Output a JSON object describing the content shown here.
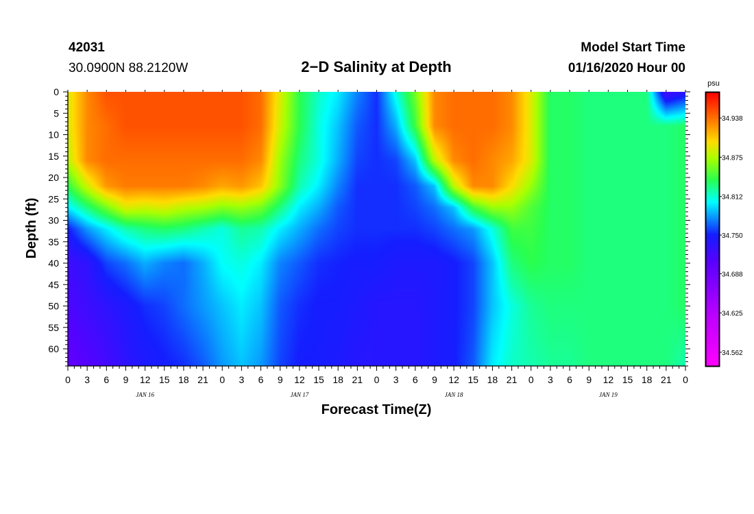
{
  "header": {
    "station_id": "42031",
    "location": "30.0900N 88.2120W",
    "title": "2−D Salinity at Depth",
    "model_label": "Model Start Time",
    "model_time": "01/16/2020 Hour 00"
  },
  "chart_data": {
    "type": "heatmap",
    "title": "2−D Salinity at Depth",
    "xlabel": "Forecast Time(Z)",
    "ylabel": "Depth (ft)",
    "x_range_hours": [
      0,
      96
    ],
    "y_range_ft": [
      0,
      64
    ],
    "y_inverted": true,
    "x_tick_labels": [
      "0",
      "3",
      "6",
      "9",
      "12",
      "15",
      "18",
      "21",
      "0",
      "3",
      "6",
      "9",
      "12",
      "15",
      "18",
      "21",
      "0",
      "3",
      "6",
      "9",
      "12",
      "15",
      "18",
      "21",
      "0",
      "3",
      "6",
      "9",
      "12",
      "15",
      "18",
      "21",
      "0"
    ],
    "y_tick_labels": [
      "0",
      "5",
      "10",
      "15",
      "20",
      "25",
      "30",
      "35",
      "40",
      "45",
      "50",
      "55",
      "60"
    ],
    "day_labels": [
      "JAN 16",
      "JAN 17",
      "JAN 18",
      "JAN 19"
    ],
    "colorbar": {
      "unit": "psu",
      "range": [
        34.54,
        34.98
      ],
      "tick_labels": [
        "34.938",
        "34.875",
        "34.812",
        "34.750",
        "34.688",
        "34.625",
        "34.562"
      ]
    },
    "depths_ft": [
      0,
      8,
      16,
      22,
      27,
      32,
      40,
      50,
      64
    ],
    "times_hours": [
      0,
      3,
      6,
      9,
      12,
      15,
      18,
      21,
      24,
      27,
      30,
      33,
      36,
      39,
      42,
      45,
      48,
      51,
      54,
      57,
      60,
      63,
      66,
      69,
      72,
      75,
      78,
      81,
      84,
      87,
      90,
      93,
      96
    ],
    "values_psu": [
      [
        34.89,
        34.93,
        34.95,
        34.95,
        34.95,
        34.95,
        34.95,
        34.95,
        34.95,
        34.95,
        34.94,
        34.89,
        34.84,
        34.815,
        34.8,
        34.775,
        34.755,
        34.81,
        34.86,
        34.93,
        34.94,
        34.94,
        34.94,
        34.93,
        34.89,
        34.835,
        34.835,
        34.83,
        34.83,
        34.83,
        34.83,
        34.72,
        34.74
      ],
      [
        34.89,
        34.93,
        34.94,
        34.95,
        34.95,
        34.95,
        34.95,
        34.95,
        34.95,
        34.95,
        34.94,
        34.885,
        34.84,
        34.81,
        34.79,
        34.765,
        34.755,
        34.785,
        34.845,
        34.93,
        34.94,
        34.94,
        34.94,
        34.93,
        34.89,
        34.835,
        34.835,
        34.83,
        34.83,
        34.83,
        34.83,
        34.83,
        34.835
      ],
      [
        34.88,
        34.93,
        34.94,
        34.94,
        34.94,
        34.94,
        34.94,
        34.94,
        34.94,
        34.94,
        34.93,
        34.87,
        34.83,
        34.81,
        34.785,
        34.76,
        34.755,
        34.76,
        34.79,
        34.88,
        34.93,
        34.94,
        34.93,
        34.92,
        34.89,
        34.835,
        34.835,
        34.83,
        34.83,
        34.83,
        34.83,
        34.83,
        34.835
      ],
      [
        34.84,
        34.885,
        34.925,
        34.935,
        34.935,
        34.935,
        34.935,
        34.93,
        34.92,
        34.925,
        34.91,
        34.865,
        34.82,
        34.8,
        34.775,
        34.755,
        34.755,
        34.755,
        34.765,
        34.79,
        34.88,
        34.93,
        34.93,
        34.9,
        34.87,
        34.835,
        34.835,
        34.83,
        34.83,
        34.83,
        34.83,
        34.83,
        34.835
      ],
      [
        34.8,
        34.83,
        34.86,
        34.89,
        34.885,
        34.89,
        34.88,
        34.875,
        34.865,
        34.87,
        34.86,
        34.83,
        34.8,
        34.785,
        34.765,
        34.755,
        34.755,
        34.755,
        34.76,
        34.77,
        34.79,
        34.845,
        34.87,
        34.87,
        34.85,
        34.835,
        34.835,
        34.83,
        34.83,
        34.83,
        34.83,
        34.83,
        34.835
      ],
      [
        34.75,
        34.78,
        34.8,
        34.82,
        34.83,
        34.835,
        34.83,
        34.82,
        34.81,
        34.825,
        34.82,
        34.8,
        34.785,
        34.77,
        34.76,
        34.755,
        34.755,
        34.755,
        34.755,
        34.76,
        34.77,
        34.78,
        34.81,
        34.845,
        34.845,
        34.835,
        34.835,
        34.83,
        34.83,
        34.83,
        34.83,
        34.83,
        34.835
      ],
      [
        34.725,
        34.735,
        34.76,
        34.77,
        34.785,
        34.775,
        34.77,
        34.785,
        34.805,
        34.81,
        34.8,
        34.775,
        34.765,
        34.755,
        34.752,
        34.75,
        34.75,
        34.745,
        34.745,
        34.745,
        34.75,
        34.76,
        34.79,
        34.83,
        34.84,
        34.835,
        34.835,
        34.83,
        34.83,
        34.83,
        34.83,
        34.83,
        34.835
      ],
      [
        34.715,
        34.725,
        34.735,
        34.745,
        34.755,
        34.76,
        34.77,
        34.78,
        34.79,
        34.8,
        34.79,
        34.765,
        34.755,
        34.75,
        34.75,
        34.745,
        34.74,
        34.74,
        34.74,
        34.745,
        34.75,
        34.76,
        34.79,
        34.81,
        34.825,
        34.83,
        34.83,
        34.83,
        34.83,
        34.83,
        34.83,
        34.83,
        34.835
      ],
      [
        34.7,
        34.71,
        34.72,
        34.735,
        34.745,
        34.75,
        34.755,
        34.765,
        34.78,
        34.79,
        34.78,
        34.76,
        34.75,
        34.75,
        34.745,
        34.74,
        34.74,
        34.74,
        34.74,
        34.745,
        34.75,
        34.765,
        34.8,
        34.815,
        34.82,
        34.825,
        34.825,
        34.83,
        34.83,
        34.83,
        34.83,
        34.83,
        34.82
      ]
    ]
  }
}
